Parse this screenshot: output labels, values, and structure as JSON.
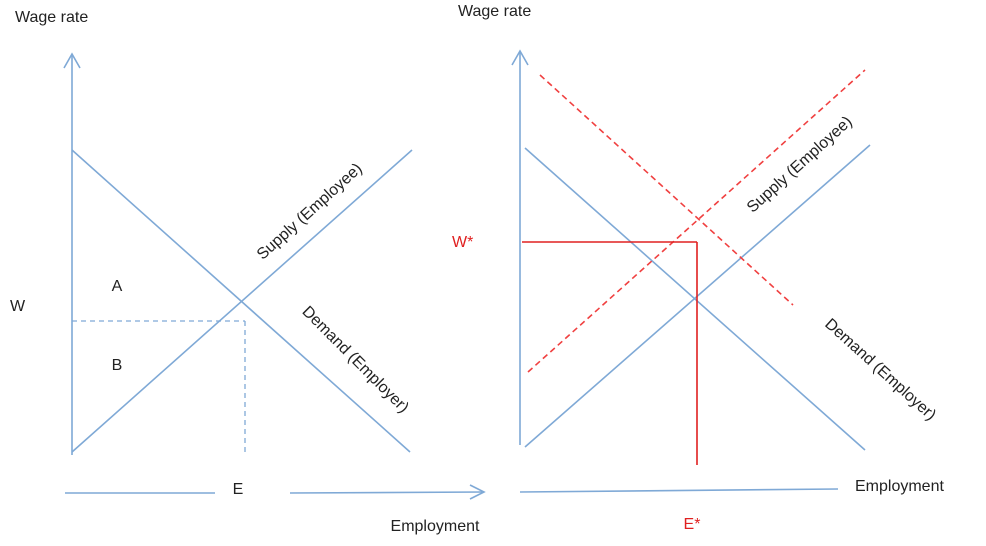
{
  "left": {
    "y_axis_label": "Wage rate",
    "x_axis_label": "Employment",
    "wage_label": "W",
    "employment_label": "E",
    "area_a": "A",
    "area_b": "B",
    "supply_label": "Supply (Employee)",
    "demand_label": "Demand (Employer)"
  },
  "right": {
    "y_axis_label": "Wage rate",
    "x_axis_label": "Employment",
    "wage_label": "W*",
    "employment_label": "E*",
    "supply_label": "Supply (Employee)",
    "demand_label": "Demand (Employer)"
  }
}
